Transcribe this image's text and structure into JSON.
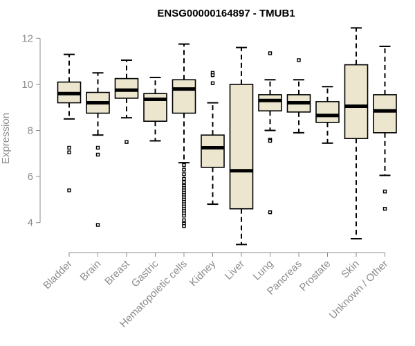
{
  "chart_data": {
    "type": "boxplot",
    "title": "ENSG00000164897 - TMUB1",
    "ylabel": "Expression",
    "xlabel": "",
    "ylim": [
      3,
      12.4
    ],
    "yticks": [
      4,
      6,
      8,
      10,
      12
    ],
    "box_fill": "#ede6cf",
    "stroke": "#000000",
    "axis_color": "#8c8c8c",
    "categories": [
      "Bladder",
      "Brain",
      "Breast",
      "Gastric",
      "Hematopoietic cells",
      "Kidney",
      "Liver",
      "Lung",
      "Pancreas",
      "Prostate",
      "Skin",
      "Unknown / Other"
    ],
    "boxes": [
      {
        "category": "Bladder",
        "whisker_low": 8.5,
        "q1": 9.2,
        "median": 9.6,
        "q3": 10.1,
        "whisker_high": 11.3,
        "outliers": [
          7.25,
          7.05,
          5.4
        ]
      },
      {
        "category": "Brain",
        "whisker_low": 7.8,
        "q1": 8.75,
        "median": 9.2,
        "q3": 9.65,
        "whisker_high": 10.5,
        "outliers": [
          7.25,
          6.95,
          3.9
        ]
      },
      {
        "category": "Breast",
        "whisker_low": 8.55,
        "q1": 9.4,
        "median": 9.75,
        "q3": 10.25,
        "whisker_high": 11.05,
        "outliers": [
          7.5
        ]
      },
      {
        "category": "Gastric",
        "whisker_low": 7.55,
        "q1": 8.4,
        "median": 9.35,
        "q3": 9.6,
        "whisker_high": 10.3,
        "outliers": []
      },
      {
        "category": "Hematopoietic cells",
        "whisker_low": 6.6,
        "q1": 8.75,
        "median": 9.8,
        "q3": 10.2,
        "whisker_high": 11.75,
        "outliers": [
          6.5,
          6.3,
          6.1,
          5.9,
          5.75,
          5.6,
          5.5,
          5.4,
          5.3,
          5.2,
          5.1,
          5.0,
          4.9,
          4.8,
          4.7,
          4.6,
          4.5,
          4.4,
          4.3,
          4.1,
          3.95,
          3.85
        ]
      },
      {
        "category": "Kidney",
        "whisker_low": 4.8,
        "q1": 6.4,
        "median": 7.25,
        "q3": 7.8,
        "whisker_high": 9.2,
        "outliers": [
          10.5,
          10.4,
          10.05
        ]
      },
      {
        "category": "Liver",
        "whisker_low": 3.05,
        "q1": 4.6,
        "median": 6.25,
        "q3": 10.0,
        "whisker_high": 11.6,
        "outliers": []
      },
      {
        "category": "Lung",
        "whisker_low": 8.0,
        "q1": 8.85,
        "median": 9.3,
        "q3": 9.55,
        "whisker_high": 10.2,
        "outliers": [
          11.35,
          7.6,
          7.55,
          4.45
        ]
      },
      {
        "category": "Pancreas",
        "whisker_low": 7.9,
        "q1": 8.8,
        "median": 9.2,
        "q3": 9.55,
        "whisker_high": 10.2,
        "outliers": [
          11.05
        ]
      },
      {
        "category": "Prostate",
        "whisker_low": 7.45,
        "q1": 8.35,
        "median": 8.65,
        "q3": 9.25,
        "whisker_high": 9.9,
        "outliers": []
      },
      {
        "category": "Skin",
        "whisker_low": 3.3,
        "q1": 7.65,
        "median": 9.05,
        "q3": 10.85,
        "whisker_high": 12.45,
        "outliers": []
      },
      {
        "category": "Unknown / Other",
        "whisker_low": 6.05,
        "q1": 7.9,
        "median": 8.85,
        "q3": 9.55,
        "whisker_high": 11.65,
        "outliers": [
          5.35,
          4.6
        ]
      }
    ]
  }
}
